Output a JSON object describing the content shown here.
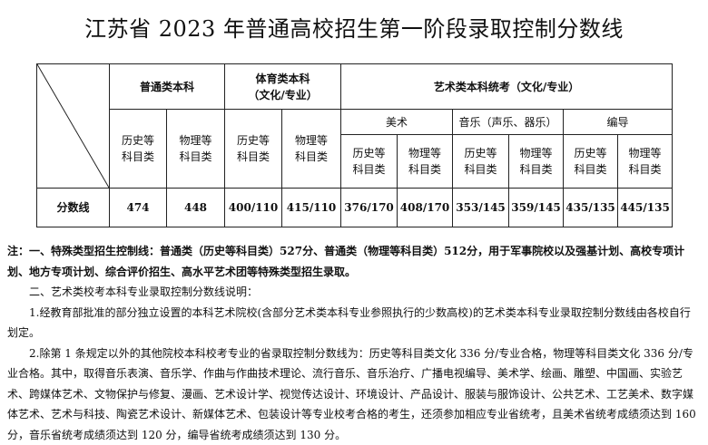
{
  "title": "江苏省 2023 年普通高校招生第一阶段录取控制分数线",
  "table": {
    "group_general": "普通类本科",
    "group_sports": "体育类本科",
    "group_sports_sub": "（文化/专业）",
    "group_art": "艺术类本科统考（文化/专业）",
    "art_sub": [
      "美术",
      "音乐（声乐、器乐）",
      "编导"
    ],
    "history": "历史等科目类",
    "physics": "物理等科目类",
    "row_label": "分数线",
    "scores": [
      "474",
      "448",
      "400/110",
      "415/110",
      "376/170",
      "408/170",
      "353/145",
      "359/145",
      "435/135",
      "445/135"
    ]
  },
  "notes": {
    "note1_prefix": "注：",
    "note1": "一、特殊类型招生控制线：普通类（历史等科目类）527分、普通类（物理等科目类）512分，用于军事院校以及强基计划、高校专项计划、地方专项计划、综合评价招生、高水平艺术团等特殊类型招生录取。",
    "note2": "二、艺术类校考本科专业录取控制分数线说明：",
    "item1": "1.经教育部批准的部分独立设置的本科艺术院校(含部分艺术类本科专业参照执行的少数高校)的艺术类本科专业录取控制分数线由各校自行划定。",
    "item2": "2.除第 1 条规定以外的其他院校本科校考专业的省录取控制分数线为：历史等科目类文化 336 分/专业合格，物理等科目类文化 336 分/专业合格。其中，取得音乐表演、音乐学、作曲与作曲技术理论、流行音乐、音乐治疗、广播电视编导、美术学、绘画、雕塑、中国画、实验艺术、跨媒体艺术、文物保护与修复、漫画、艺术设计学、视觉传达设计、环境设计、产品设计、服装与服饰设计、公共艺术、工艺美术、数字媒体艺术、艺术与科技、陶瓷艺术设计、新媒体艺术、包装设计等专业校考合格的考生，还须参加相应专业省统考，且美术省统考成绩须达到 160 分，音乐省统考成绩须达到 120 分，编导省统考成绩须达到 130 分。"
  }
}
